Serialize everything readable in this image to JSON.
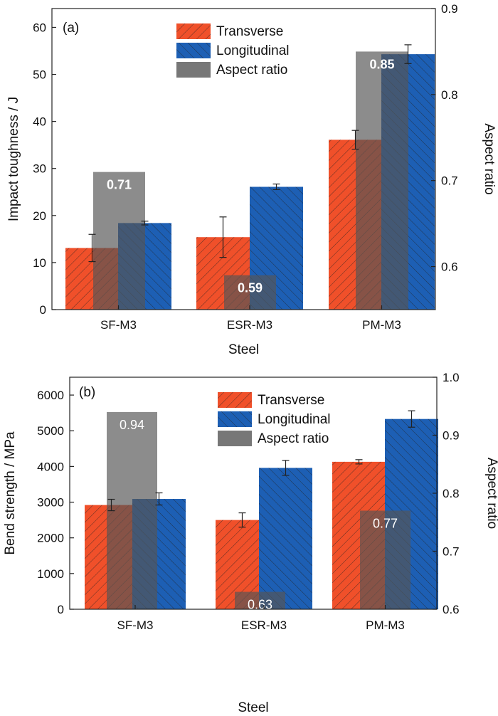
{
  "colors": {
    "transverse": "#f0502a",
    "longitudinal": "#1d5fb4",
    "aspect_ratio": "#555555",
    "hatch": "#222222"
  },
  "chart_data": [
    {
      "type": "bar",
      "panel_label": "(a)",
      "categories": [
        "SF-M3",
        "ESR-M3",
        "PM-M3"
      ],
      "series": [
        {
          "name": "Transverse",
          "values": [
            13.1,
            15.4,
            36.1
          ],
          "errors": [
            2.9,
            4.3,
            2.0
          ]
        },
        {
          "name": "Longitudinal",
          "values": [
            18.4,
            26.1,
            54.3
          ],
          "errors": [
            0.4,
            0.6,
            2.0
          ]
        }
      ],
      "secondary_series": {
        "name": "Aspect ratio",
        "values": [
          0.71,
          0.59,
          0.85
        ],
        "labels": [
          "0.71",
          "0.59",
          "0.85"
        ]
      },
      "xlabel": "Steel",
      "ylabel": "Impact toughness / J",
      "y2label": "Aspect ratio",
      "ylim": [
        0,
        64
      ],
      "y2lim": [
        0.55,
        0.9
      ],
      "yticks": [
        "0",
        "10",
        "20",
        "30",
        "40",
        "50",
        "60"
      ],
      "y2ticks": [
        "0.6",
        "0.7",
        "0.8",
        "0.9"
      ],
      "legend": [
        "Transverse",
        "Longitudinal",
        "Aspect ratio"
      ],
      "legend_position": "top-center",
      "value_label_style": "bold",
      "grid": false
    },
    {
      "type": "bar",
      "panel_label": "(b)",
      "categories": [
        "SF-M3",
        "ESR-M3",
        "PM-M3"
      ],
      "series": [
        {
          "name": "Transverse",
          "values": [
            2920,
            2500,
            4130
          ],
          "errors": [
            160,
            200,
            60
          ]
        },
        {
          "name": "Longitudinal",
          "values": [
            3090,
            3960,
            5330
          ],
          "errors": [
            170,
            210,
            230
          ]
        }
      ],
      "secondary_series": {
        "name": "Aspect ratio",
        "values": [
          0.94,
          0.63,
          0.77
        ],
        "labels": [
          "0.94",
          "0.63",
          "0.77"
        ]
      },
      "xlabel": "Steel",
      "ylabel": "Bend strength / MPa",
      "y2label": "Aspect ratio",
      "ylim": [
        0,
        6500
      ],
      "y2lim": [
        0.6,
        1.0
      ],
      "yticks": [
        "0",
        "1000",
        "2000",
        "3000",
        "4000",
        "5000",
        "6000"
      ],
      "y2ticks": [
        "0.6",
        "0.7",
        "0.8",
        "0.9",
        "1.0"
      ],
      "legend": [
        "Transverse",
        "Longitudinal",
        "Aspect ratio"
      ],
      "legend_position": "top-center",
      "value_label_style": "normal",
      "grid": false
    }
  ]
}
